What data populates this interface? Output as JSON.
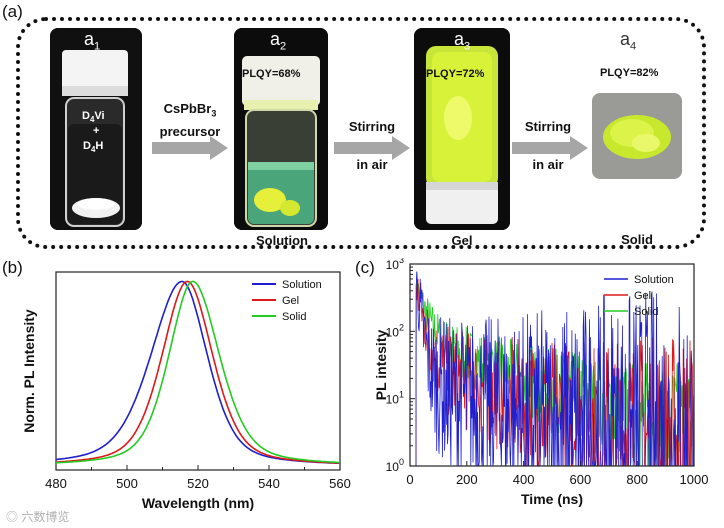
{
  "figure": {
    "panel_a_label": "(a)",
    "panel_b_label": "(b)",
    "panel_c_label": "(c)",
    "watermark": "六数博览"
  },
  "panel_a": {
    "a1": {
      "label": "a",
      "sub": "1",
      "vial_text_1": "D",
      "vial_text_1_sub": "4",
      "vial_text_1_tail": "Vi",
      "vial_plus": "+",
      "vial_text_2": "D",
      "vial_text_2_sub": "4",
      "vial_text_2_tail": "H"
    },
    "a2": {
      "label": "a",
      "sub": "2",
      "plqy": "PLQY=68%",
      "caption": "Solution"
    },
    "a3": {
      "label": "a",
      "sub": "3",
      "plqy": "PLQY=72%",
      "caption": "Gel"
    },
    "a4": {
      "label": "a",
      "sub": "4",
      "plqy": "PLQY=82%",
      "caption": "Solid"
    },
    "arrow1": {
      "line1": "CsPbBr",
      "line1_sub": "3",
      "line2": "precursor"
    },
    "arrow2": {
      "line1": "Stirring",
      "line2": "in air"
    },
    "arrow3": {
      "line1": "Stirring",
      "line2": "in air"
    },
    "colors": {
      "arrow": "#a6a6a6",
      "green_glow": "#d8f23a",
      "photo_bg": "#0d0d0d"
    }
  },
  "chart_data": [
    {
      "type": "line",
      "panel": "b",
      "title": "",
      "xlabel": "Wavelength (nm)",
      "ylabel": "Norm. PL Intensity",
      "xlim": [
        480,
        560
      ],
      "ylim": [
        0,
        1.05
      ],
      "xticks": [
        480,
        500,
        520,
        540,
        560
      ],
      "legend": "top-right",
      "series": [
        {
          "name": "Solution",
          "color": "#1f1fd0",
          "peak": 515.5,
          "fwhm_left": 10.5,
          "fwhm_right": 8.5
        },
        {
          "name": "Gel",
          "color": "#e01818",
          "peak": 517,
          "fwhm_left": 8.5,
          "fwhm_right": 8.5
        },
        {
          "name": "Solid",
          "color": "#22cc22",
          "peak": 518.5,
          "fwhm_left": 8.0,
          "fwhm_right": 9.0
        }
      ]
    },
    {
      "type": "line",
      "panel": "c",
      "title": "",
      "xlabel": "Time (ns)",
      "ylabel": "PL intesity",
      "xlim": [
        0,
        1000
      ],
      "ylim": [
        1,
        1000
      ],
      "yscale": "log",
      "xticks": [
        0,
        200,
        400,
        600,
        800,
        1000
      ],
      "yticks_exp": [
        0,
        1,
        2,
        3
      ],
      "ytick_base": "10",
      "legend": "top-right",
      "series": [
        {
          "name": "Solution",
          "color": "#1f1fd0",
          "amp_fast": 500,
          "tau_fast": 14,
          "amp_slow": 18,
          "tau_slow": 220,
          "noise": 1.6
        },
        {
          "name": "Gel",
          "color": "#e01818",
          "amp_fast": 450,
          "tau_fast": 20,
          "amp_slow": 35,
          "tau_slow": 240,
          "noise": 1.2
        },
        {
          "name": "Solid",
          "color": "#22cc22",
          "amp_fast": 400,
          "tau_fast": 28,
          "amp_slow": 80,
          "tau_slow": 260,
          "noise": 0.9
        }
      ]
    }
  ]
}
